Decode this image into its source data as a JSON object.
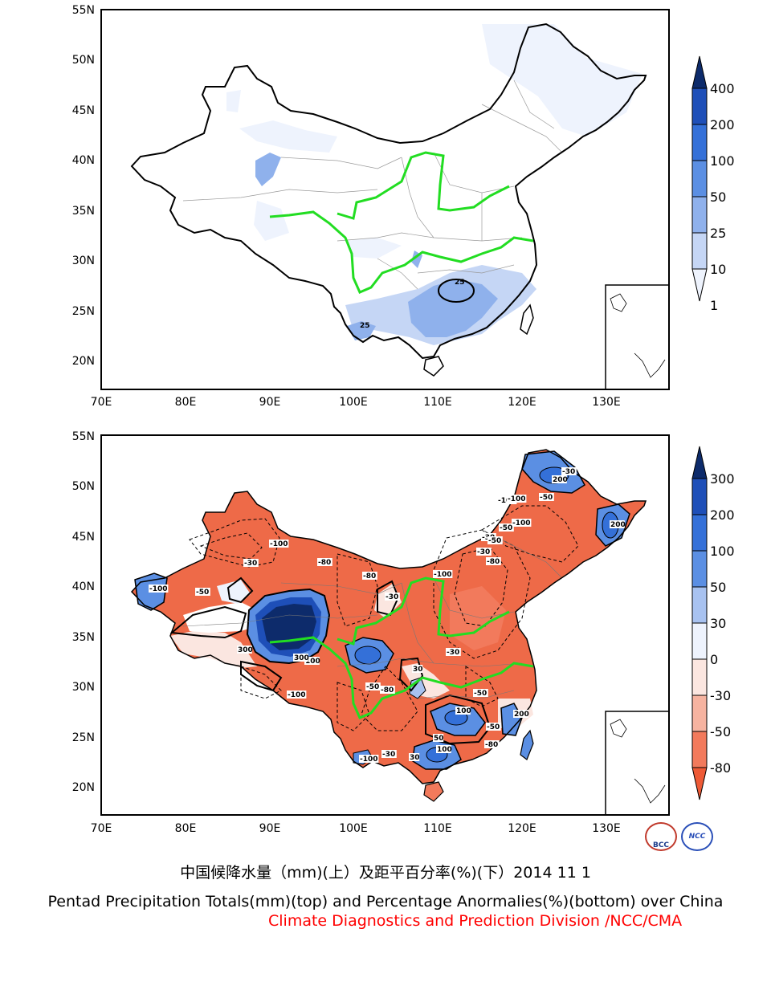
{
  "top_panel": {
    "lat_ticks": [
      "55N",
      "50N",
      "45N",
      "40N",
      "35N",
      "30N",
      "25N",
      "20N"
    ],
    "lon_ticks": [
      "70E",
      "80E",
      "90E",
      "100E",
      "110E",
      "120E",
      "130E"
    ],
    "colorbar_labels": [
      "400",
      "200",
      "100",
      "50",
      "25",
      "10",
      "1"
    ],
    "colorbar_colors": [
      "#0d2b6b",
      "#1e4fb8",
      "#3470d8",
      "#5b8fe3",
      "#8fb1ec",
      "#c5d6f5",
      "#eef3fd"
    ],
    "contour_labels": [
      "25",
      "25"
    ]
  },
  "bottom_panel": {
    "lat_ticks": [
      "55N",
      "50N",
      "45N",
      "40N",
      "35N",
      "30N",
      "25N",
      "20N"
    ],
    "lon_ticks": [
      "70E",
      "80E",
      "90E",
      "100E",
      "110E",
      "120E",
      "130E"
    ],
    "colorbar_labels": [
      "300",
      "200",
      "100",
      "50",
      "30",
      "0",
      "-30",
      "-50",
      "-80"
    ],
    "colorbar_colors": [
      "#0d2b6b",
      "#1e4fb8",
      "#3470d8",
      "#5b8fe3",
      "#a8c2f0",
      "#eef3fd",
      "#fbe6e0",
      "#f6b3a0",
      "#f27a5c",
      "#ee5a36"
    ],
    "contour_labels": [
      "-100",
      "-100",
      "-30",
      "-50",
      "200",
      "-100",
      "-80",
      "-30",
      "300",
      "-100",
      "-80",
      "-50",
      "-30",
      "-100",
      "-80",
      "-30",
      "-50",
      "-100",
      "200",
      "100",
      "300",
      "-100",
      "-50",
      "-30",
      "30",
      "50",
      "100",
      "-50",
      "-80",
      "100",
      "200",
      "-30",
      "-50",
      "-80",
      "-50",
      "-100",
      "30",
      "-30"
    ]
  },
  "caption": {
    "zh": "中国候降水量（mm)(上）及距平百分率(%)(下）2014  11  1",
    "en": "Pentad Precipitation Totals(mm)(top) and Percentage Anormalies(%)(bottom) over China",
    "org": "Climate Diagnostics and Prediction Division /NCC/CMA",
    "org_color": "#ff0000"
  },
  "logos": [
    "BCC",
    "NCC"
  ]
}
